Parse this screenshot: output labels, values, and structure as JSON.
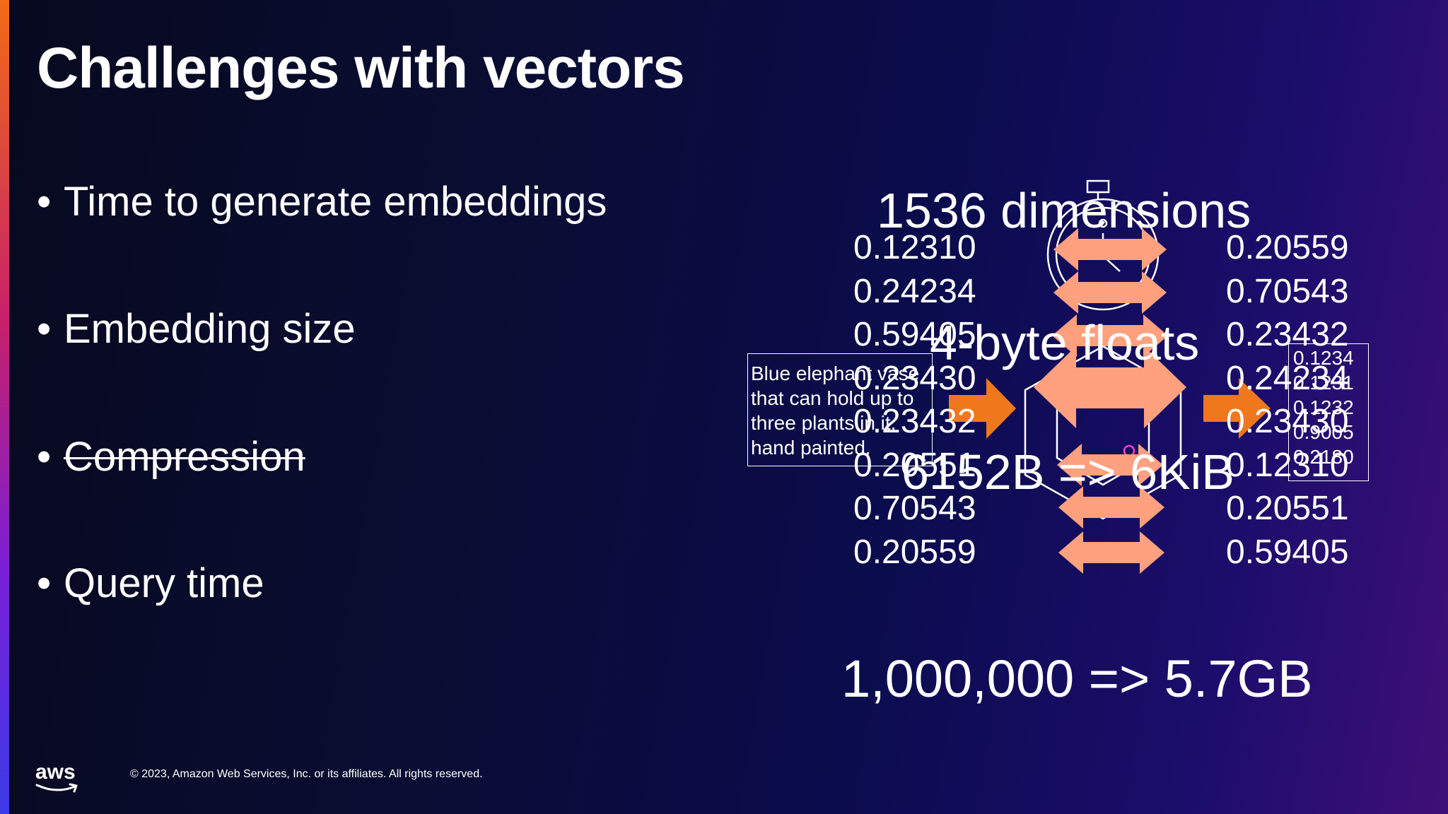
{
  "slide": {
    "title": "Challenges with vectors",
    "bullets": [
      {
        "label": "Time to generate embeddings",
        "struck": false
      },
      {
        "label": "Embedding size",
        "struck": false
      },
      {
        "label": "Compression",
        "struck": true
      },
      {
        "label": "Query time",
        "struck": false
      }
    ],
    "bullet_glyph": "•"
  },
  "diagram": {
    "dimensions_label": "1536 dimensions",
    "floats_label": "4-byte floats",
    "bytes_label": "6152B => 6KiB",
    "total_label": "1,000,000 => 5.7GB",
    "input_text": "Blue elephant vase that can hold up to three plants in it, hand painted.",
    "left_values": [
      "0.12310",
      "0.24234",
      "0.59405",
      "0.23430",
      "0.23432",
      "0.20551",
      "0.70543",
      "0.20559"
    ],
    "right_values": [
      "0.20559",
      "0.70543",
      "0.23432",
      "0.24234",
      "0.23430",
      "0.12310",
      "0.20551",
      "0.59405"
    ],
    "small_values": [
      "0.1234",
      "0.1231",
      "0.1232",
      "0.9005",
      "0.2180"
    ],
    "icons": [
      "stopwatch-icon",
      "model-hexagon-icon",
      "double-arrow-icon",
      "arrow-right-icon"
    ]
  },
  "footer": {
    "logo_text": "aws",
    "copyright": "© 2023, Amazon Web Services, Inc. or its affiliates. All rights reserved."
  },
  "colors": {
    "arrow_orange": "#f0781c",
    "double_arrow": "#ffa07f",
    "accent_magenta": "#c4206c",
    "background": "#0a0d33"
  }
}
